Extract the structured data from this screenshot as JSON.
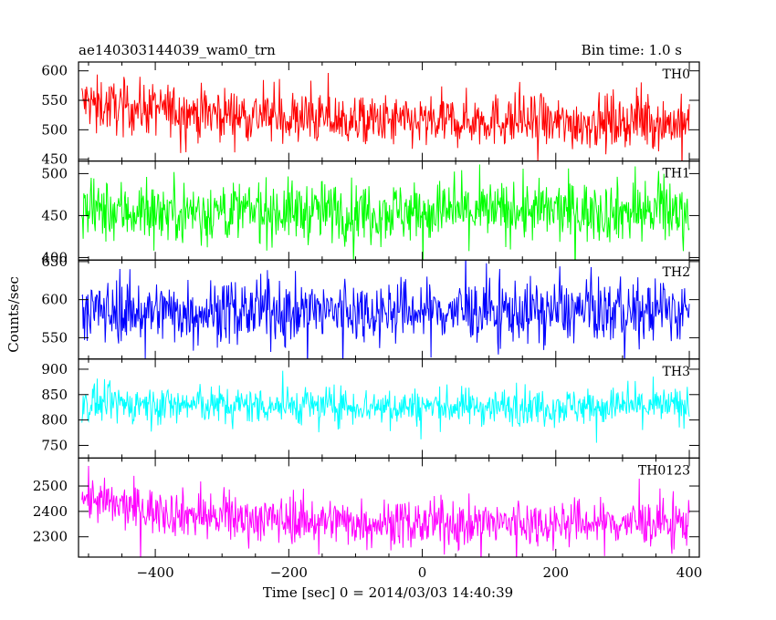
{
  "chart_data": {
    "type": "line",
    "title": "ae140303144039_wam0_trn",
    "subtitle": "Bin time: 1.0 s",
    "xlabel": "Time [sec] 0 = 2014/03/03 14:40:39",
    "ylabel": "Counts/sec",
    "xlim": [
      -515,
      415
    ],
    "x_ticks": [
      -400,
      -200,
      0,
      200,
      400
    ],
    "x_tick_labels": [
      "−400",
      "−200",
      "0",
      "200",
      "400"
    ],
    "x_range": [
      -510,
      400
    ],
    "bin_time": 1.0,
    "grid": false,
    "panels": [
      {
        "name": "TH0",
        "color": "#ff0000",
        "ylim": [
          447,
          615
        ],
        "yticks": [
          450,
          500,
          550,
          600
        ],
        "baseline": [
          [
            -510,
            548
          ],
          [
            -470,
            540
          ],
          [
            -300,
            528
          ],
          [
            -100,
            515
          ],
          [
            0,
            512
          ],
          [
            100,
            518
          ],
          [
            200,
            510
          ],
          [
            300,
            515
          ],
          [
            400,
            510
          ]
        ],
        "noise": 22,
        "spike": 45
      },
      {
        "name": "TH1",
        "color": "#00ff00",
        "ylim": [
          397,
          515
        ],
        "yticks": [
          400,
          450,
          500
        ],
        "baseline": [
          [
            -510,
            455
          ],
          [
            0,
            455
          ],
          [
            400,
            455
          ]
        ],
        "noise": 18,
        "spike": 38
      },
      {
        "name": "TH2",
        "color": "#0000ff",
        "ylim": [
          522,
          652
        ],
        "yticks": [
          550,
          600,
          650
        ],
        "baseline": [
          [
            -510,
            585
          ],
          [
            0,
            585
          ],
          [
            400,
            585
          ]
        ],
        "noise": 20,
        "spike": 45
      },
      {
        "name": "TH3",
        "color": "#00ffff",
        "ylim": [
          725,
          920
        ],
        "yticks": [
          750,
          800,
          850,
          900
        ],
        "baseline": [
          [
            -510,
            832
          ],
          [
            0,
            826
          ],
          [
            400,
            828
          ]
        ],
        "noise": 18,
        "spike": 40
      },
      {
        "name": "TH0123",
        "color": "#ff00ff",
        "ylim": [
          2220,
          2610
        ],
        "yticks": [
          2300,
          2400,
          2500
        ],
        "baseline": [
          [
            -510,
            2460
          ],
          [
            -460,
            2420
          ],
          [
            -300,
            2375
          ],
          [
            -100,
            2360
          ],
          [
            0,
            2350
          ],
          [
            200,
            2355
          ],
          [
            400,
            2355
          ]
        ],
        "noise": 45,
        "spike": 95
      }
    ]
  }
}
